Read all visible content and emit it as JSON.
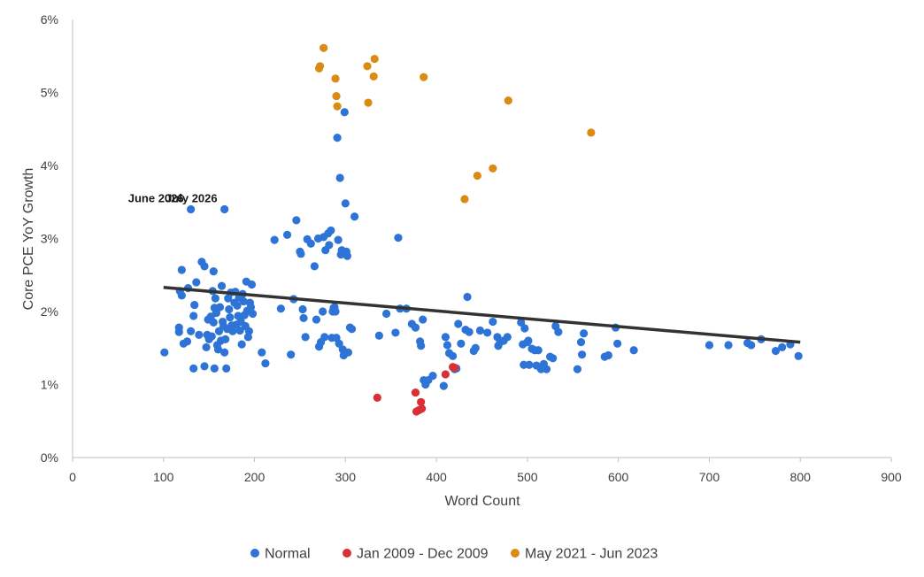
{
  "chart_data": {
    "type": "scatter",
    "xlabel": "Word Count",
    "ylabel": "Core PCE YoY Growth",
    "xlim": [
      0,
      900
    ],
    "ylim": [
      0,
      6
    ],
    "x_ticks": [
      "0",
      "100",
      "200",
      "300",
      "400",
      "500",
      "600",
      "700",
      "800",
      "900"
    ],
    "y_ticks": [
      "0%",
      "1%",
      "2%",
      "3%",
      "4%",
      "5%",
      "6%"
    ],
    "grid": false,
    "legend_position": "bottom",
    "trendline": {
      "color": "#333333",
      "x": [
        100,
        800
      ],
      "y": [
        2.33,
        1.58
      ]
    },
    "annotations": [
      {
        "text": "June 2026",
        "x": 130,
        "y": 3.4
      },
      {
        "text": "July 2026",
        "x": 167,
        "y": 3.4
      }
    ],
    "series": [
      {
        "name": "Normal",
        "color": "#2e74d6",
        "points": [
          [
            101,
            1.44
          ],
          [
            117,
            1.78
          ],
          [
            117,
            1.72
          ],
          [
            118,
            2.28
          ],
          [
            120,
            2.22
          ],
          [
            120,
            2.57
          ],
          [
            122,
            1.56
          ],
          [
            126,
            1.59
          ],
          [
            127,
            2.32
          ],
          [
            130,
            1.73
          ],
          [
            130,
            3.4
          ],
          [
            133,
            1.22
          ],
          [
            133,
            1.94
          ],
          [
            134,
            2.09
          ],
          [
            136,
            2.4
          ],
          [
            139,
            1.68
          ],
          [
            142,
            2.68
          ],
          [
            145,
            1.25
          ],
          [
            145,
            2.62
          ],
          [
            147,
            1.51
          ],
          [
            148,
            1.68
          ],
          [
            149,
            1.89
          ],
          [
            150,
            1.62
          ],
          [
            152,
            1.93
          ],
          [
            153,
            1.66
          ],
          [
            154,
            2.28
          ],
          [
            155,
            1.85
          ],
          [
            155,
            2.55
          ],
          [
            156,
            1.22
          ],
          [
            156,
            2.05
          ],
          [
            157,
            2.18
          ],
          [
            158,
            1.98
          ],
          [
            159,
            1.54
          ],
          [
            160,
            1.48
          ],
          [
            161,
            1.73
          ],
          [
            162,
            2.06
          ],
          [
            163,
            1.6
          ],
          [
            164,
            2.35
          ],
          [
            165,
            1.86
          ],
          [
            166,
            1.8
          ],
          [
            167,
            1.44
          ],
          [
            167,
            3.4
          ],
          [
            168,
            1.62
          ],
          [
            169,
            1.22
          ],
          [
            170,
            1.76
          ],
          [
            171,
            2.18
          ],
          [
            172,
            2.03
          ],
          [
            173,
            1.92
          ],
          [
            174,
            2.26
          ],
          [
            175,
            1.81
          ],
          [
            176,
            1.73
          ],
          [
            178,
            2.12
          ],
          [
            179,
            2.27
          ],
          [
            180,
            1.82
          ],
          [
            181,
            2.08
          ],
          [
            182,
            1.94
          ],
          [
            183,
            2.19
          ],
          [
            184,
            1.74
          ],
          [
            185,
            1.86
          ],
          [
            186,
            1.55
          ],
          [
            187,
            2.24
          ],
          [
            188,
            2.14
          ],
          [
            189,
            1.95
          ],
          [
            190,
            1.8
          ],
          [
            191,
            2.41
          ],
          [
            192,
            2.01
          ],
          [
            193,
            1.65
          ],
          [
            194,
            1.73
          ],
          [
            195,
            2.12
          ],
          [
            196,
            2.06
          ],
          [
            197,
            2.37
          ],
          [
            198,
            1.97
          ],
          [
            208,
            1.44
          ],
          [
            212,
            1.29
          ],
          [
            222,
            2.98
          ],
          [
            229,
            2.04
          ],
          [
            236,
            3.05
          ],
          [
            240,
            1.41
          ],
          [
            243,
            2.17
          ],
          [
            246,
            3.25
          ],
          [
            250,
            2.82
          ],
          [
            251,
            2.79
          ],
          [
            253,
            2.03
          ],
          [
            254,
            1.91
          ],
          [
            256,
            1.65
          ],
          [
            258,
            2.99
          ],
          [
            262,
            2.93
          ],
          [
            266,
            2.62
          ],
          [
            268,
            1.89
          ],
          [
            270,
            3.0
          ],
          [
            271,
            1.52
          ],
          [
            273,
            1.58
          ],
          [
            275,
            2.0
          ],
          [
            276,
            3.02
          ],
          [
            277,
            1.65
          ],
          [
            278,
            2.84
          ],
          [
            281,
            3.07
          ],
          [
            282,
            2.91
          ],
          [
            284,
            3.11
          ],
          [
            285,
            1.64
          ],
          [
            286,
            2.0
          ],
          [
            287,
            2.05
          ],
          [
            288,
            2.06
          ],
          [
            289,
            2.0
          ],
          [
            290,
            1.64
          ],
          [
            291,
            4.38
          ],
          [
            292,
            2.98
          ],
          [
            293,
            1.56
          ],
          [
            294,
            3.83
          ],
          [
            295,
            2.78
          ],
          [
            296,
            2.84
          ],
          [
            297,
            1.48
          ],
          [
            298,
            1.4
          ],
          [
            299,
            4.73
          ],
          [
            300,
            3.48
          ],
          [
            301,
            2.82
          ],
          [
            302,
            2.76
          ],
          [
            303,
            1.44
          ],
          [
            305,
            1.78
          ],
          [
            307,
            1.76
          ],
          [
            310,
            3.3
          ],
          [
            337,
            1.67
          ],
          [
            345,
            1.97
          ],
          [
            355,
            1.71
          ],
          [
            358,
            3.01
          ],
          [
            360,
            2.04
          ],
          [
            367,
            2.04
          ],
          [
            373,
            1.83
          ],
          [
            377,
            1.78
          ],
          [
            382,
            1.59
          ],
          [
            383,
            1.53
          ],
          [
            385,
            1.89
          ],
          [
            386,
            1.06
          ],
          [
            388,
            1.0
          ],
          [
            391,
            1.06
          ],
          [
            396,
            1.12
          ],
          [
            408,
            0.98
          ],
          [
            410,
            1.65
          ],
          [
            412,
            1.54
          ],
          [
            414,
            1.43
          ],
          [
            418,
            1.39
          ],
          [
            420,
            1.21
          ],
          [
            422,
            1.22
          ],
          [
            424,
            1.83
          ],
          [
            427,
            1.56
          ],
          [
            432,
            1.75
          ],
          [
            434,
            2.2
          ],
          [
            436,
            1.72
          ],
          [
            441,
            1.46
          ],
          [
            443,
            1.5
          ],
          [
            448,
            1.74
          ],
          [
            456,
            1.71
          ],
          [
            462,
            1.86
          ],
          [
            467,
            1.65
          ],
          [
            468,
            1.53
          ],
          [
            470,
            1.58
          ],
          [
            474,
            1.6
          ],
          [
            478,
            1.65
          ],
          [
            493,
            1.85
          ],
          [
            495,
            1.55
          ],
          [
            496,
            1.27
          ],
          [
            497,
            1.77
          ],
          [
            500,
            1.58
          ],
          [
            501,
            1.6
          ],
          [
            502,
            1.27
          ],
          [
            505,
            1.49
          ],
          [
            508,
            1.47
          ],
          [
            510,
            1.26
          ],
          [
            512,
            1.47
          ],
          [
            515,
            1.21
          ],
          [
            518,
            1.28
          ],
          [
            521,
            1.21
          ],
          [
            525,
            1.38
          ],
          [
            528,
            1.36
          ],
          [
            531,
            1.8
          ],
          [
            534,
            1.72
          ],
          [
            555,
            1.21
          ],
          [
            559,
            1.58
          ],
          [
            560,
            1.41
          ],
          [
            562,
            1.7
          ],
          [
            585,
            1.38
          ],
          [
            589,
            1.4
          ],
          [
            597,
            1.78
          ],
          [
            599,
            1.56
          ],
          [
            617,
            1.47
          ],
          [
            700,
            1.54
          ],
          [
            721,
            1.54
          ],
          [
            742,
            1.57
          ],
          [
            746,
            1.54
          ],
          [
            757,
            1.62
          ],
          [
            773,
            1.46
          ],
          [
            780,
            1.51
          ],
          [
            789,
            1.55
          ],
          [
            798,
            1.39
          ]
        ]
      },
      {
        "name": "Jan 2009 - Dec 2009",
        "color": "#d93035",
        "points": [
          [
            335,
            0.82
          ],
          [
            377,
            0.89
          ],
          [
            378,
            0.63
          ],
          [
            381,
            0.65
          ],
          [
            383,
            0.76
          ],
          [
            384,
            0.67
          ],
          [
            410,
            1.14
          ],
          [
            418,
            1.24
          ],
          [
            420,
            1.23
          ]
        ]
      },
      {
        "name": "May 2021 - Jun 2023",
        "color": "#d98b14",
        "points": [
          [
            271,
            5.33
          ],
          [
            272,
            5.36
          ],
          [
            276,
            5.61
          ],
          [
            289,
            5.19
          ],
          [
            290,
            4.95
          ],
          [
            291,
            4.81
          ],
          [
            324,
            5.36
          ],
          [
            325,
            4.86
          ],
          [
            331,
            5.22
          ],
          [
            332,
            5.46
          ],
          [
            386,
            5.21
          ],
          [
            431,
            3.54
          ],
          [
            445,
            3.86
          ],
          [
            462,
            3.96
          ],
          [
            479,
            4.89
          ],
          [
            570,
            4.45
          ]
        ]
      }
    ]
  }
}
